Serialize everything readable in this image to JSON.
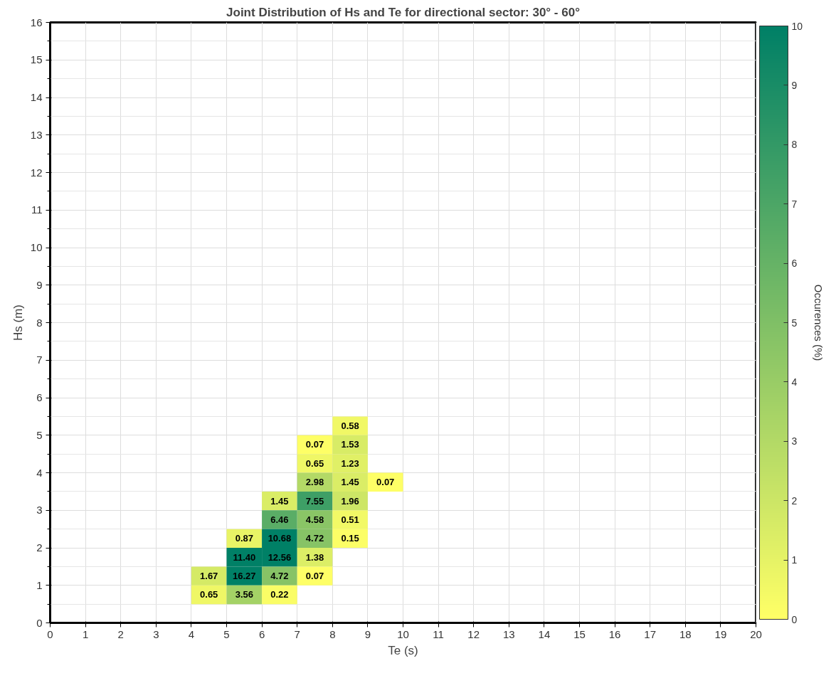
{
  "chart_data": {
    "type": "heatmap",
    "title": "Joint Distribution of Hs and Te for directional sector: 30° - 60°",
    "xlabel": "Te (s)",
    "ylabel": "Hs (m)",
    "clabel": "Occurences (%)",
    "x": [
      4.5,
      5.5,
      6.5,
      7.5,
      8.5,
      9.5
    ],
    "y": [
      5.25,
      4.75,
      4.25,
      3.75,
      3.25,
      2.75,
      2.25,
      1.75,
      1.25,
      0.75
    ],
    "cells": [
      [
        null,
        null,
        null,
        null,
        0.58,
        null
      ],
      [
        null,
        null,
        null,
        0.07,
        1.53,
        null
      ],
      [
        null,
        null,
        null,
        0.65,
        1.23,
        null
      ],
      [
        null,
        null,
        null,
        2.98,
        1.45,
        0.07
      ],
      [
        null,
        null,
        1.45,
        7.55,
        1.96,
        null
      ],
      [
        null,
        null,
        6.46,
        4.58,
        0.51,
        null
      ],
      [
        null,
        0.87,
        10.68,
        4.72,
        0.15,
        null
      ],
      [
        null,
        11.4,
        12.56,
        1.38,
        null,
        null
      ],
      [
        1.67,
        16.27,
        4.72,
        0.07,
        null,
        null
      ],
      [
        0.65,
        3.56,
        0.22,
        null,
        null,
        null
      ]
    ],
    "cell_labels": [
      [
        null,
        null,
        null,
        null,
        "0.58",
        null
      ],
      [
        null,
        null,
        null,
        "0.07",
        "1.53",
        null
      ],
      [
        null,
        null,
        null,
        "0.65",
        "1.23",
        null
      ],
      [
        null,
        null,
        null,
        "2.98",
        "1.45",
        "0.07"
      ],
      [
        null,
        null,
        "1.45",
        "7.55",
        "1.96",
        null
      ],
      [
        null,
        null,
        "6.46",
        "4.58",
        "0.51",
        null
      ],
      [
        null,
        "0.87",
        "10.68",
        "4.72",
        "0.15",
        null
      ],
      [
        null,
        "11.40",
        "12.56",
        "1.38",
        null,
        null
      ],
      [
        "1.67",
        "16.27",
        "4.72",
        "0.07",
        null,
        null
      ],
      [
        "0.65",
        "3.56",
        "0.22",
        null,
        null,
        null
      ]
    ],
    "colors": [
      "#ffff66",
      "#008066"
    ],
    "clim": [
      0,
      10
    ],
    "cticks": [
      0,
      1,
      2,
      3,
      4,
      5,
      6,
      7,
      8,
      9,
      10
    ],
    "xlim": [
      0,
      20
    ],
    "xticks": [
      0,
      1,
      2,
      3,
      4,
      5,
      6,
      7,
      8,
      9,
      10,
      11,
      12,
      13,
      14,
      15,
      16,
      17,
      18,
      19,
      20
    ],
    "ylim": [
      0,
      16
    ],
    "yticks": [
      0,
      1,
      2,
      3,
      4,
      5,
      6,
      7,
      8,
      9,
      10,
      11,
      12,
      13,
      14,
      15,
      16
    ],
    "grid": true
  }
}
